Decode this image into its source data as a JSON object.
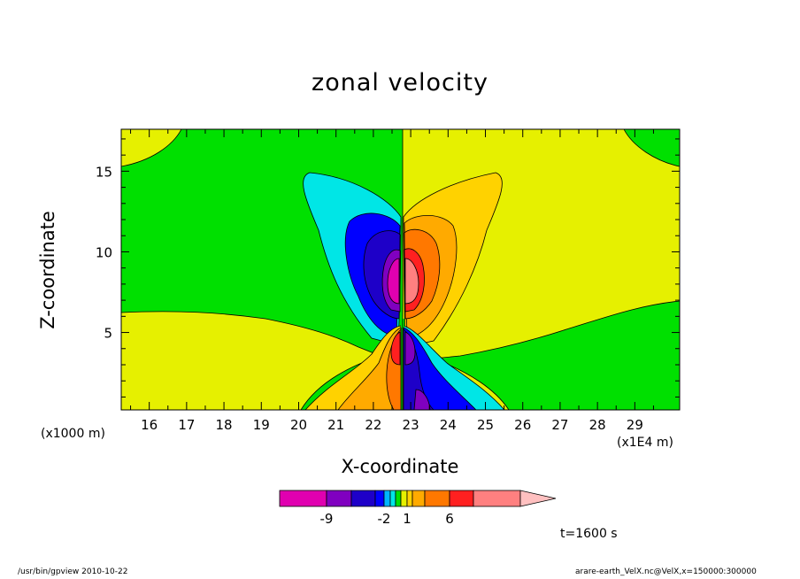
{
  "chart_data": {
    "type": "heatmap",
    "title": "zonal velocity",
    "xlabel": "X-coordinate",
    "ylabel": "Z-coordinate",
    "x_unit": "(x1E4 m)",
    "y_unit": "(x1000 m)",
    "xlim": [
      15.25,
      30.2
    ],
    "ylim": [
      0.2,
      17.6
    ],
    "x_ticks": [
      16,
      17,
      18,
      19,
      20,
      21,
      22,
      23,
      24,
      25,
      26,
      27,
      28,
      29
    ],
    "y_ticks": [
      5,
      10,
      15
    ],
    "colorbar": {
      "labels": [
        {
          "text": "-9",
          "value": -9
        },
        {
          "text": "-2",
          "value": -2
        },
        {
          "text": "1",
          "value": 1
        },
        {
          "text": "6",
          "value": 6
        }
      ],
      "colors": [
        "#e000b0",
        "#8000c0",
        "#1e00c8",
        "#0000ff",
        "#00b4ff",
        "#00e6e6",
        "#00e000",
        "#e6f000",
        "#ffd200",
        "#ffaa00",
        "#ff7800",
        "#ff2020",
        "#ff8080",
        "#ffc0c0"
      ]
    },
    "annotation": "t=1600 s"
  },
  "footer": {
    "left": "/usr/bin/gpview   2010-10-22",
    "right": "arare-earth_VelX.nc@VelX,x=150000:300000"
  }
}
